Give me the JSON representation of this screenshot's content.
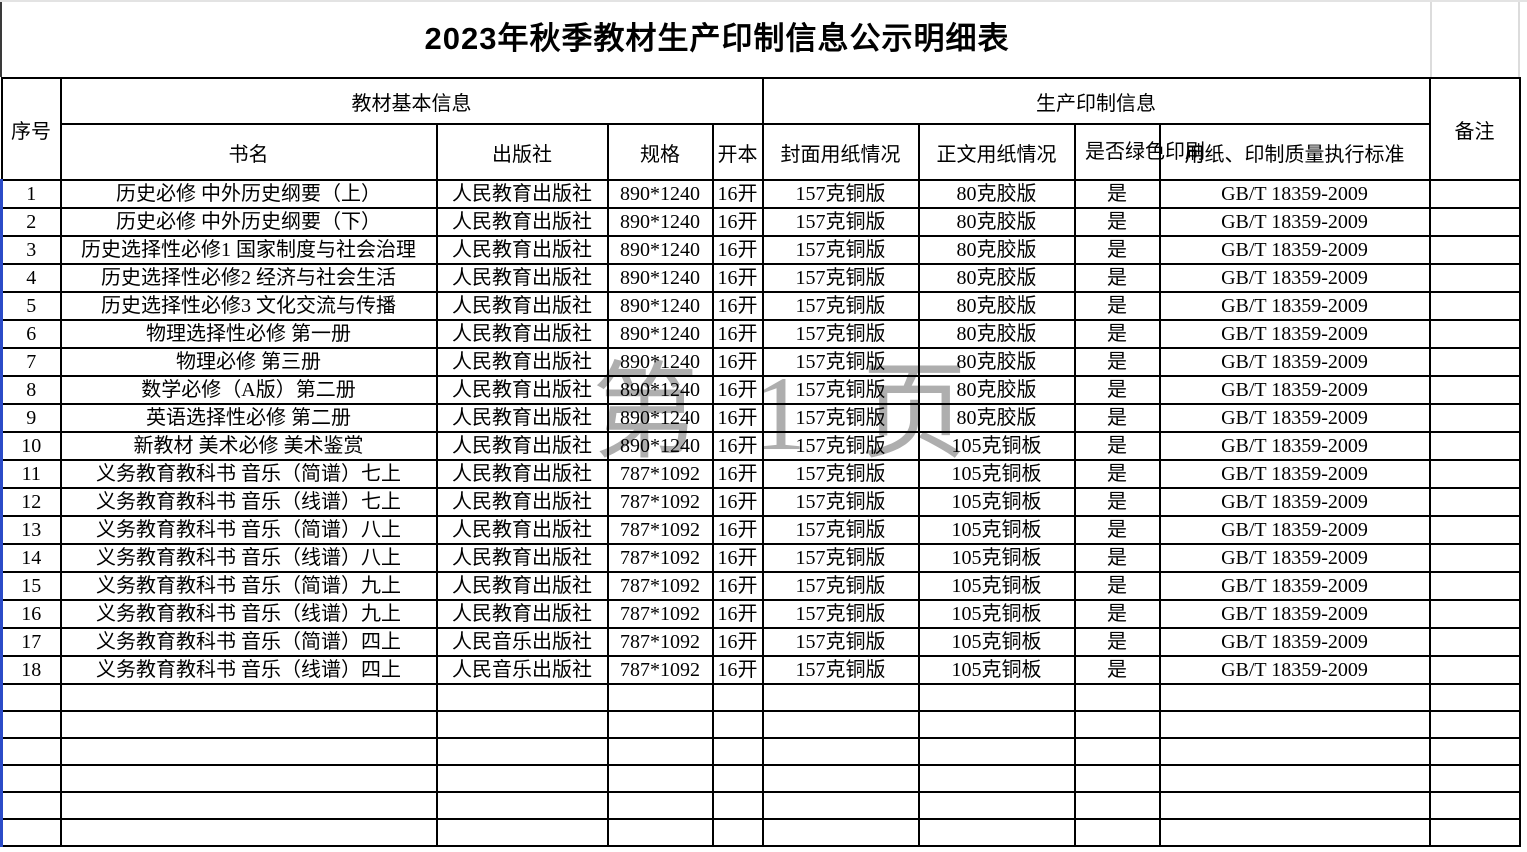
{
  "title": "2023年秋季教材生产印制信息公示明细表",
  "watermark": "第1页",
  "header": {
    "xuhao": "序号",
    "group_basic": "教材基本信息",
    "group_production": "生产印制信息",
    "beizhu": "备注",
    "sub": [
      "书名",
      "出版社",
      "规格",
      "开本",
      "封面用纸情况",
      "正文用纸情况",
      "是否绿色印刷",
      "用纸、印制质量执行标准"
    ]
  },
  "rows": [
    {
      "no": "1",
      "name": "历史必修 中外历史纲要（上）",
      "publisher": "人民教育出版社",
      "spec": "890*1240",
      "format": "16开",
      "cover": "157克铜版",
      "body": "80克胶版",
      "green": "是",
      "standard": "GB/T 18359-2009",
      "remark": ""
    },
    {
      "no": "2",
      "name": "历史必修 中外历史纲要（下）",
      "publisher": "人民教育出版社",
      "spec": "890*1240",
      "format": "16开",
      "cover": "157克铜版",
      "body": "80克胶版",
      "green": "是",
      "standard": "GB/T 18359-2009",
      "remark": ""
    },
    {
      "no": "3",
      "name": "历史选择性必修1 国家制度与社会治理",
      "publisher": "人民教育出版社",
      "spec": "890*1240",
      "format": "16开",
      "cover": "157克铜版",
      "body": "80克胶版",
      "green": "是",
      "standard": "GB/T 18359-2009",
      "remark": ""
    },
    {
      "no": "4",
      "name": "历史选择性必修2 经济与社会生活",
      "publisher": "人民教育出版社",
      "spec": "890*1240",
      "format": "16开",
      "cover": "157克铜版",
      "body": "80克胶版",
      "green": "是",
      "standard": "GB/T 18359-2009",
      "remark": ""
    },
    {
      "no": "5",
      "name": "历史选择性必修3 文化交流与传播",
      "publisher": "人民教育出版社",
      "spec": "890*1240",
      "format": "16开",
      "cover": "157克铜版",
      "body": "80克胶版",
      "green": "是",
      "standard": "GB/T 18359-2009",
      "remark": ""
    },
    {
      "no": "6",
      "name": "物理选择性必修 第一册",
      "publisher": "人民教育出版社",
      "spec": "890*1240",
      "format": "16开",
      "cover": "157克铜版",
      "body": "80克胶版",
      "green": "是",
      "standard": "GB/T 18359-2009",
      "remark": ""
    },
    {
      "no": "7",
      "name": "物理必修 第三册",
      "publisher": "人民教育出版社",
      "spec": "890*1240",
      "format": "16开",
      "cover": "157克铜版",
      "body": "80克胶版",
      "green": "是",
      "standard": "GB/T 18359-2009",
      "remark": ""
    },
    {
      "no": "8",
      "name": "数学必修（A版）第二册",
      "publisher": "人民教育出版社",
      "spec": "890*1240",
      "format": "16开",
      "cover": "157克铜版",
      "body": "80克胶版",
      "green": "是",
      "standard": "GB/T 18359-2009",
      "remark": ""
    },
    {
      "no": "9",
      "name": "英语选择性必修 第二册",
      "publisher": "人民教育出版社",
      "spec": "890*1240",
      "format": "16开",
      "cover": "157克铜版",
      "body": "80克胶版",
      "green": "是",
      "standard": "GB/T 18359-2009",
      "remark": ""
    },
    {
      "no": "10",
      "name": "新教材 美术必修 美术鉴赏",
      "publisher": "人民教育出版社",
      "spec": "890*1240",
      "format": "16开",
      "cover": "157克铜版",
      "body": "105克铜板",
      "green": "是",
      "standard": "GB/T 18359-2009",
      "remark": ""
    },
    {
      "no": "11",
      "name": "义务教育教科书 音乐（简谱）七上",
      "publisher": "人民教育出版社",
      "spec": "787*1092",
      "format": "16开",
      "cover": "157克铜版",
      "body": "105克铜板",
      "green": "是",
      "standard": "GB/T 18359-2009",
      "remark": ""
    },
    {
      "no": "12",
      "name": "义务教育教科书 音乐（线谱）七上",
      "publisher": "人民教育出版社",
      "spec": "787*1092",
      "format": "16开",
      "cover": "157克铜版",
      "body": "105克铜板",
      "green": "是",
      "standard": "GB/T 18359-2009",
      "remark": ""
    },
    {
      "no": "13",
      "name": "义务教育教科书 音乐（简谱）八上",
      "publisher": "人民教育出版社",
      "spec": "787*1092",
      "format": "16开",
      "cover": "157克铜版",
      "body": "105克铜板",
      "green": "是",
      "standard": "GB/T 18359-2009",
      "remark": ""
    },
    {
      "no": "14",
      "name": "义务教育教科书 音乐（线谱）八上",
      "publisher": "人民教育出版社",
      "spec": "787*1092",
      "format": "16开",
      "cover": "157克铜版",
      "body": "105克铜板",
      "green": "是",
      "standard": "GB/T 18359-2009",
      "remark": ""
    },
    {
      "no": "15",
      "name": "义务教育教科书 音乐（简谱）九上",
      "publisher": "人民教育出版社",
      "spec": "787*1092",
      "format": "16开",
      "cover": "157克铜版",
      "body": "105克铜板",
      "green": "是",
      "standard": "GB/T 18359-2009",
      "remark": ""
    },
    {
      "no": "16",
      "name": "义务教育教科书 音乐（线谱）九上",
      "publisher": "人民教育出版社",
      "spec": "787*1092",
      "format": "16开",
      "cover": "157克铜版",
      "body": "105克铜板",
      "green": "是",
      "standard": "GB/T 18359-2009",
      "remark": ""
    },
    {
      "no": "17",
      "name": "义务教育教科书 音乐（简谱）四上",
      "publisher": "人民音乐出版社",
      "spec": "787*1092",
      "format": "16开",
      "cover": "157克铜版",
      "body": "105克铜板",
      "green": "是",
      "standard": "GB/T 18359-2009",
      "remark": ""
    },
    {
      "no": "18",
      "name": "义务教育教科书 音乐（线谱）四上",
      "publisher": "人民音乐出版社",
      "spec": "787*1092",
      "format": "16开",
      "cover": "157克铜版",
      "body": "105克铜板",
      "green": "是",
      "standard": "GB/T 18359-2009",
      "remark": ""
    }
  ],
  "empty_row_count": 6,
  "colors": {
    "border": "#000000",
    "left_edge_stripe": "#2b4bc8",
    "watermark_gray": "#909090"
  }
}
